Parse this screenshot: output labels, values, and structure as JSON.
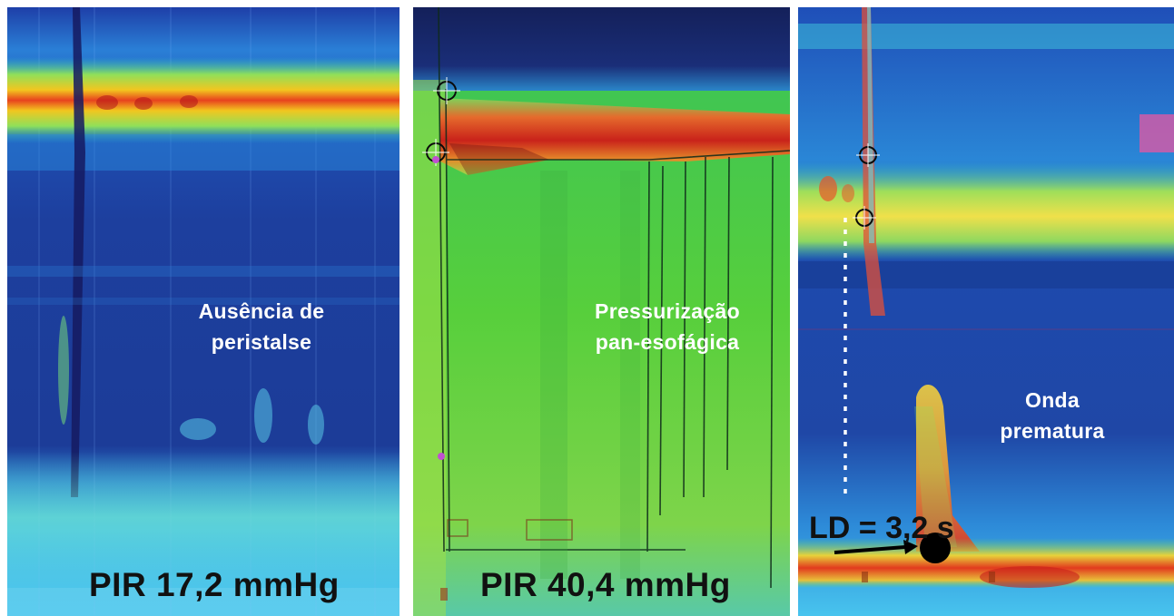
{
  "panels": [
    {
      "caption_line1": "Ausência de",
      "caption_line2": "peristalse",
      "pir_label": "PIR 17,2 mmHg"
    },
    {
      "caption_line1": "Pressurização",
      "caption_line2": "pan-esofágica",
      "pir_label": "PIR 40,4 mmHg"
    },
    {
      "caption_line1": "Onda",
      "caption_line2": "prematura",
      "ld_label": "LD = 3,2 s"
    }
  ]
}
